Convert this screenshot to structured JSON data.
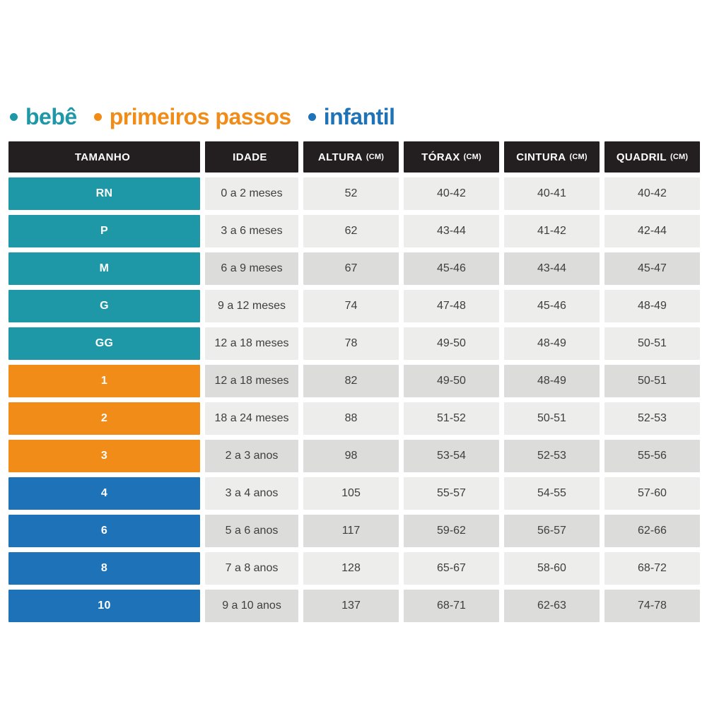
{
  "legend": {
    "items": [
      {
        "label": "bebê",
        "color": "#1E98A6",
        "group": "bebe"
      },
      {
        "label": "primeiros passos",
        "color": "#F28C18",
        "group": "primeiros_passos"
      },
      {
        "label": "infantil",
        "color": "#1E73B8",
        "group": "infantil"
      }
    ]
  },
  "colors": {
    "background": "#FFFFFF",
    "header_bg": "#231F20",
    "header_text": "#FFFFFF",
    "cell_light": "#EDEDEB",
    "cell_dark": "#DCDCDA",
    "cell_text": "#3E3E3E",
    "bebe": "#1E98A6",
    "primeiros_passos": "#F28C18",
    "infantil": "#1E73B8"
  },
  "chart_data": {
    "type": "table",
    "title": "",
    "columns": [
      {
        "label": "TAMANHO",
        "unit": ""
      },
      {
        "label": "IDADE",
        "unit": ""
      },
      {
        "label": "ALTURA",
        "unit": "(CM)"
      },
      {
        "label": "TÓRAX",
        "unit": "(CM)"
      },
      {
        "label": "CINTURA",
        "unit": "(CM)"
      },
      {
        "label": "QUADRIL",
        "unit": "(CM)"
      }
    ],
    "rows": [
      {
        "size": "RN",
        "group": "bebe",
        "age": "0 a 2 meses",
        "altura": "52",
        "torax": "40-42",
        "cintura": "40-41",
        "quadril": "40-42",
        "shaded": false
      },
      {
        "size": "P",
        "group": "bebe",
        "age": "3 a 6 meses",
        "altura": "62",
        "torax": "43-44",
        "cintura": "41-42",
        "quadril": "42-44",
        "shaded": false
      },
      {
        "size": "M",
        "group": "bebe",
        "age": "6 a 9 meses",
        "altura": "67",
        "torax": "45-46",
        "cintura": "43-44",
        "quadril": "45-47",
        "shaded": true
      },
      {
        "size": "G",
        "group": "bebe",
        "age": "9 a 12 meses",
        "altura": "74",
        "torax": "47-48",
        "cintura": "45-46",
        "quadril": "48-49",
        "shaded": false
      },
      {
        "size": "GG",
        "group": "bebe",
        "age": "12 a 18 meses",
        "altura": "78",
        "torax": "49-50",
        "cintura": "48-49",
        "quadril": "50-51",
        "shaded": false
      },
      {
        "size": "1",
        "group": "primeiros_passos",
        "age": "12 a 18 meses",
        "altura": "82",
        "torax": "49-50",
        "cintura": "48-49",
        "quadril": "50-51",
        "shaded": true
      },
      {
        "size": "2",
        "group": "primeiros_passos",
        "age": "18 a 24 meses",
        "altura": "88",
        "torax": "51-52",
        "cintura": "50-51",
        "quadril": "52-53",
        "shaded": false
      },
      {
        "size": "3",
        "group": "primeiros_passos",
        "age": "2 a 3 anos",
        "altura": "98",
        "torax": "53-54",
        "cintura": "52-53",
        "quadril": "55-56",
        "shaded": true
      },
      {
        "size": "4",
        "group": "infantil",
        "age": "3 a 4 anos",
        "altura": "105",
        "torax": "55-57",
        "cintura": "54-55",
        "quadril": "57-60",
        "shaded": false
      },
      {
        "size": "6",
        "group": "infantil",
        "age": "5 a 6 anos",
        "altura": "117",
        "torax": "59-62",
        "cintura": "56-57",
        "quadril": "62-66",
        "shaded": true
      },
      {
        "size": "8",
        "group": "infantil",
        "age": "7 a 8 anos",
        "altura": "128",
        "torax": "65-67",
        "cintura": "58-60",
        "quadril": "68-72",
        "shaded": false
      },
      {
        "size": "10",
        "group": "infantil",
        "age": "9 a 10 anos",
        "altura": "137",
        "torax": "68-71",
        "cintura": "62-63",
        "quadril": "74-78",
        "shaded": true
      }
    ]
  }
}
